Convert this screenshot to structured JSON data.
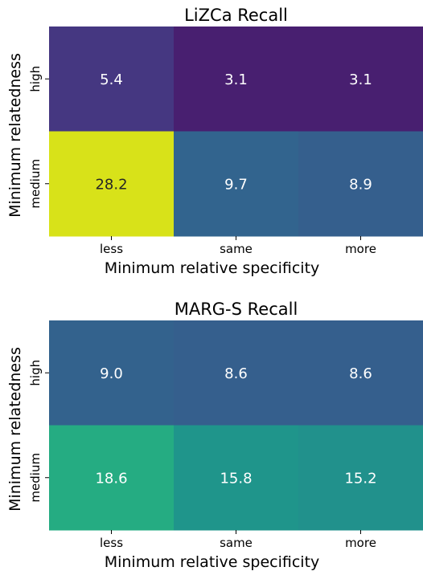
{
  "chart_data": [
    {
      "type": "heatmap",
      "title": "LiZCa Recall",
      "xlabel": "Minimum relative specificity",
      "ylabel": "Minimum relatedness",
      "x_categories": [
        "less",
        "same",
        "more"
      ],
      "y_categories": [
        "high",
        "medium"
      ],
      "values": [
        [
          5.4,
          3.1,
          3.1
        ],
        [
          28.2,
          9.7,
          8.9
        ]
      ],
      "value_labels": [
        [
          "5.4",
          "3.1",
          "3.1"
        ],
        [
          "28.2",
          "9.7",
          "8.9"
        ]
      ],
      "colors": [
        [
          "#453781",
          "#481f70",
          "#481f70"
        ],
        [
          "#d8e219",
          "#32648e",
          "#355f8d"
        ]
      ],
      "label_colors": [
        [
          "#ffffff",
          "#ffffff",
          "#ffffff"
        ],
        [
          "#262626",
          "#ffffff",
          "#ffffff"
        ]
      ]
    },
    {
      "type": "heatmap",
      "title": "MARG-S Recall",
      "xlabel": "Minimum relative specificity",
      "ylabel": "Minimum relatedness",
      "x_categories": [
        "less",
        "same",
        "more"
      ],
      "y_categories": [
        "high",
        "medium"
      ],
      "values": [
        [
          9.0,
          8.6,
          8.6
        ],
        [
          18.6,
          15.8,
          15.2
        ]
      ],
      "value_labels": [
        [
          "9.0",
          "8.6",
          "8.6"
        ],
        [
          "18.6",
          "15.8",
          "15.2"
        ]
      ],
      "colors": [
        [
          "#33628d",
          "#355f8d",
          "#355f8d"
        ],
        [
          "#25ac82",
          "#1f958b",
          "#21918c"
        ]
      ],
      "label_colors": [
        [
          "#ffffff",
          "#ffffff",
          "#ffffff"
        ],
        [
          "#ffffff",
          "#ffffff",
          "#ffffff"
        ]
      ]
    }
  ]
}
